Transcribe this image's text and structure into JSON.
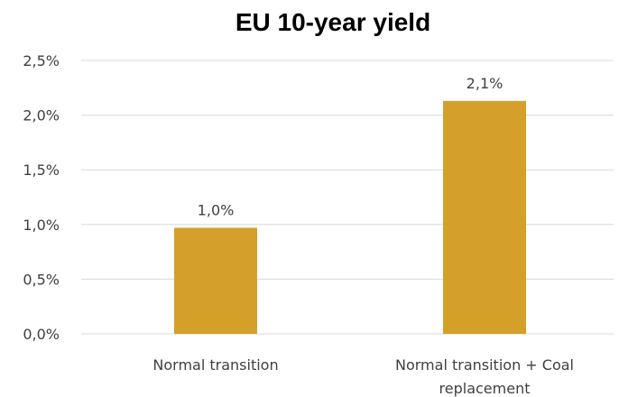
{
  "chart_data": {
    "type": "bar",
    "title": "EU 10-year yield",
    "xlabel": "",
    "ylabel": "",
    "categories": [
      [
        "Normal transition"
      ],
      [
        "Normal transition + Coal",
        "replacement"
      ]
    ],
    "values": [
      0.97,
      2.13
    ],
    "data_labels": [
      "1,0%",
      "2,1%"
    ],
    "ylim": [
      0,
      2.5
    ],
    "yticks": [
      0,
      0.5,
      1.0,
      1.5,
      2.0,
      2.5
    ],
    "ytick_labels": [
      "0,0%",
      "0,5%",
      "1,0%",
      "1,5%",
      "2,0%",
      "2,5%"
    ],
    "grid": true,
    "legend": "none",
    "colors": {
      "bar": "#D4A02A",
      "grid": "#D9D9D9",
      "text": "#404040"
    }
  }
}
